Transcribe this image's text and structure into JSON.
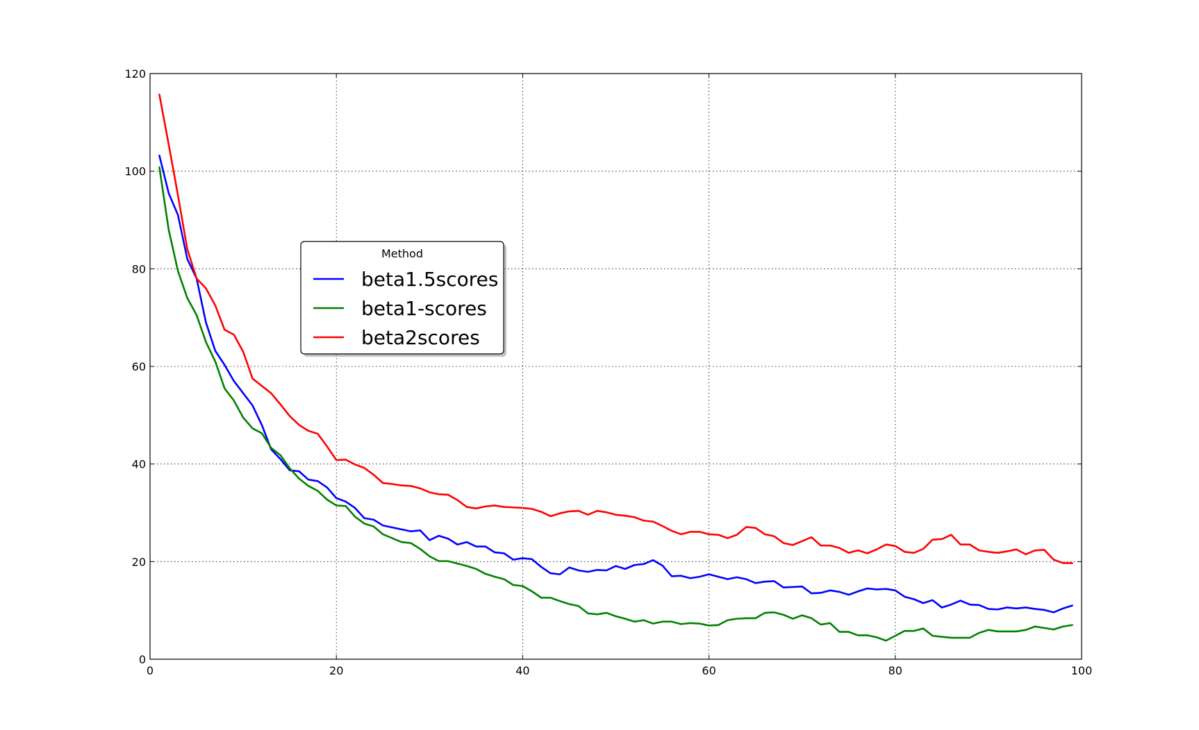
{
  "chart_data": {
    "type": "line",
    "title": "",
    "xlabel": "",
    "ylabel": "",
    "xlim": [
      0,
      100
    ],
    "ylim": [
      0,
      120
    ],
    "xticks": [
      0,
      20,
      40,
      60,
      80,
      100
    ],
    "yticks": [
      0,
      20,
      40,
      60,
      80,
      100,
      120
    ],
    "xtick_labels": [
      "0",
      "20",
      "40",
      "60",
      "80",
      "100"
    ],
    "ytick_labels": [
      "0",
      "20",
      "40",
      "60",
      "80",
      "100",
      "120"
    ],
    "grid": true,
    "legend": {
      "title": "Method",
      "position": "center-left"
    },
    "x": [
      1,
      2,
      3,
      4,
      5,
      6,
      7,
      8,
      9,
      10,
      11,
      12,
      13,
      14,
      15,
      16,
      17,
      18,
      19,
      20,
      21,
      22,
      23,
      24,
      25,
      26,
      27,
      28,
      29,
      30,
      31,
      32,
      33,
      34,
      35,
      36,
      37,
      38,
      39,
      40,
      41,
      42,
      43,
      44,
      45,
      46,
      47,
      48,
      49,
      50,
      51,
      52,
      53,
      54,
      55,
      56,
      57,
      58,
      59,
      60,
      61,
      62,
      63,
      64,
      65,
      66,
      67,
      68,
      69,
      70,
      71,
      72,
      73,
      74,
      75,
      76,
      77,
      78,
      79,
      80,
      81,
      82,
      83,
      84,
      85,
      86,
      87,
      88,
      89,
      90,
      91,
      92,
      93,
      94,
      95,
      96,
      97,
      98,
      99
    ],
    "series": [
      {
        "name": "beta1.5scores",
        "color": "#0000ff",
        "values": [
          103.2,
          95.5,
          91.0,
          82.0,
          78.0,
          69.0,
          63.2,
          60.3,
          57.0,
          54.5,
          52.0,
          48.0,
          43.0,
          41.0,
          38.7,
          38.5,
          36.8,
          36.5,
          35.2,
          33.0,
          32.3,
          31.0,
          28.9,
          28.6,
          27.4,
          27.0,
          26.6,
          26.2,
          26.4,
          24.4,
          25.3,
          24.7,
          23.5,
          24.0,
          23.1,
          23.1,
          21.9,
          21.7,
          20.4,
          20.7,
          20.5,
          18.9,
          17.6,
          17.4,
          18.8,
          18.2,
          17.9,
          18.3,
          18.2,
          19.1,
          18.5,
          19.3,
          19.5,
          20.3,
          19.2,
          17.0,
          17.1,
          16.6,
          16.9,
          17.4,
          16.9,
          16.4,
          16.8,
          16.4,
          15.6,
          15.9,
          16.0,
          14.7,
          14.8,
          14.9,
          13.5,
          13.6,
          14.1,
          13.8,
          13.2,
          13.9,
          14.5,
          14.3,
          14.4,
          14.1,
          12.8,
          12.3,
          11.5,
          12.1,
          10.6,
          11.2,
          12.0,
          11.2,
          11.1,
          10.3,
          10.2,
          10.6,
          10.4,
          10.6,
          10.3,
          10.1,
          9.6,
          10.4,
          11.0
        ]
      },
      {
        "name": "beta1-scores",
        "color": "#008000",
        "values": [
          100.8,
          88.0,
          79.5,
          74.0,
          70.5,
          65.0,
          61.0,
          55.5,
          53.0,
          49.5,
          47.3,
          46.3,
          43.3,
          41.8,
          39.1,
          37.0,
          35.5,
          34.5,
          32.7,
          31.5,
          31.4,
          29.2,
          27.8,
          27.2,
          25.6,
          24.8,
          24.0,
          23.8,
          22.6,
          21.1,
          20.1,
          20.1,
          19.6,
          19.1,
          18.5,
          17.5,
          16.9,
          16.4,
          15.2,
          15.0,
          13.9,
          12.6,
          12.6,
          11.9,
          11.3,
          10.9,
          9.4,
          9.2,
          9.5,
          8.8,
          8.3,
          7.7,
          8.0,
          7.3,
          7.7,
          7.7,
          7.2,
          7.4,
          7.3,
          6.9,
          7.0,
          8.0,
          8.3,
          8.4,
          8.4,
          9.5,
          9.6,
          9.1,
          8.3,
          9.0,
          8.4,
          7.1,
          7.4,
          5.6,
          5.6,
          4.9,
          4.9,
          4.5,
          3.8,
          4.8,
          5.8,
          5.8,
          6.3,
          4.8,
          4.6,
          4.4,
          4.4,
          4.4,
          5.4,
          6.0,
          5.7,
          5.7,
          5.7,
          6.0,
          6.7,
          6.4,
          6.1,
          6.7,
          7.0
        ]
      },
      {
        "name": "beta2scores",
        "color": "#ff0000",
        "values": [
          115.7,
          105.5,
          95.0,
          84.0,
          78.0,
          76.0,
          72.5,
          67.5,
          66.5,
          63.0,
          57.5,
          56.0,
          54.5,
          52.2,
          49.8,
          48.0,
          46.8,
          46.2,
          43.6,
          40.8,
          40.9,
          39.9,
          39.2,
          37.8,
          36.1,
          35.9,
          35.6,
          35.5,
          35.0,
          34.2,
          33.8,
          33.7,
          32.6,
          31.2,
          30.9,
          31.3,
          31.5,
          31.2,
          31.1,
          31.0,
          30.8,
          30.2,
          29.3,
          29.9,
          30.3,
          30.4,
          29.6,
          30.4,
          30.1,
          29.6,
          29.4,
          29.1,
          28.4,
          28.2,
          27.3,
          26.3,
          25.6,
          26.1,
          26.1,
          25.6,
          25.5,
          24.8,
          25.5,
          27.1,
          26.9,
          25.6,
          25.2,
          23.8,
          23.4,
          24.2,
          25.0,
          23.3,
          23.3,
          22.8,
          21.8,
          22.3,
          21.7,
          22.5,
          23.5,
          23.2,
          22.0,
          21.8,
          22.6,
          24.5,
          24.6,
          25.5,
          23.5,
          23.5,
          22.3,
          22.0,
          21.8,
          22.1,
          22.5,
          21.5,
          22.3,
          22.4,
          20.4,
          19.7,
          19.7
        ]
      }
    ]
  }
}
